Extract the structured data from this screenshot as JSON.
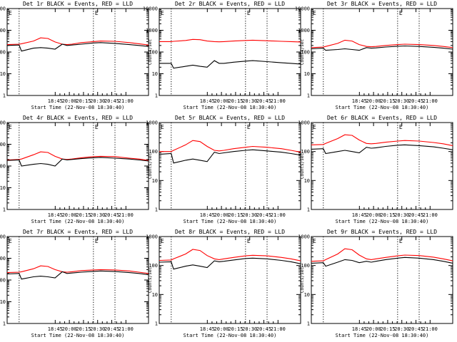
{
  "colors": {
    "events": "#000000",
    "lld": "#ff0000",
    "axes": "#000000",
    "background": "#ffffff"
  },
  "chart_data": [
    {
      "type": "line",
      "scale": "log",
      "ylim": [
        1,
        10000
      ],
      "xlim": [
        -0.25,
        2.7
      ],
      "title": "Det 1r BLACK = Events, RED = LLD",
      "xlabel": "Start Time (22-Nov-08 18:30:40)",
      "ylabel": "Counts/sec",
      "xticks": [
        "18:45",
        "20:00",
        "20:15",
        "20:30",
        "20:45",
        "21:00"
      ],
      "yticks": [
        "1",
        "10",
        "100",
        "1000",
        "10000"
      ],
      "markers": [
        0,
        1.55,
        2.0
      ],
      "marker_label": "E",
      "x": [
        -0.25,
        0.0,
        0.05,
        0.3,
        0.45,
        0.6,
        0.75,
        0.9,
        1.0,
        1.1,
        1.3,
        1.55,
        1.7,
        2.0,
        2.3,
        2.5,
        2.7
      ],
      "series": [
        {
          "role": "lld",
          "values": [
            220,
            230,
            240,
            320,
            450,
            420,
            290,
            230,
            220,
            230,
            270,
            300,
            320,
            310,
            270,
            240,
            210
          ]
        },
        {
          "role": "events",
          "values": [
            200,
            210,
            110,
            150,
            160,
            150,
            135,
            230,
            200,
            210,
            230,
            260,
            270,
            250,
            220,
            200,
            180
          ]
        }
      ]
    },
    {
      "type": "line",
      "scale": "log",
      "ylim": [
        1,
        10000
      ],
      "xlim": [
        -0.25,
        2.7
      ],
      "title": "Det 2r BLACK = Events, RED = LLD",
      "xlabel": "Start Time (22-Nov-08 18:30:40)",
      "ylabel": "Counts/sec",
      "xticks": [
        "18:45",
        "20:00",
        "20:15",
        "20:30",
        "20:45",
        "21:00"
      ],
      "yticks": [
        "1",
        "10",
        "100",
        "1000",
        "10000"
      ],
      "markers": [
        0,
        1.55,
        2.0
      ],
      "marker_label": "E",
      "x": [
        -0.25,
        0.0,
        0.05,
        0.3,
        0.45,
        0.6,
        0.75,
        0.9,
        1.0,
        1.1,
        1.3,
        1.55,
        1.7,
        2.0,
        2.3,
        2.5,
        2.7
      ],
      "series": [
        {
          "role": "lld",
          "values": [
            300,
            300,
            310,
            340,
            380,
            370,
            320,
            300,
            295,
            300,
            320,
            340,
            350,
            330,
            310,
            300,
            290
          ]
        },
        {
          "role": "events",
          "values": [
            30,
            30,
            18,
            22,
            25,
            22,
            20,
            40,
            30,
            30,
            34,
            38,
            40,
            36,
            32,
            30,
            28
          ]
        }
      ]
    },
    {
      "type": "line",
      "scale": "log",
      "ylim": [
        1,
        10000
      ],
      "xlim": [
        -0.25,
        2.7
      ],
      "title": "Det 3r BLACK = Events, RED = LLD",
      "xlabel": "Start Time (22-Nov-08 18:30:40)",
      "ylabel": "Counts/sec",
      "xticks": [
        "18:45",
        "20:00",
        "20:15",
        "20:30",
        "20:45",
        "21:00"
      ],
      "yticks": [
        "1",
        "10",
        "100",
        "1000",
        "10000"
      ],
      "markers": [
        0,
        1.55,
        2.0
      ],
      "marker_label": "E",
      "x": [
        -0.25,
        0.0,
        0.05,
        0.3,
        0.45,
        0.6,
        0.75,
        0.9,
        1.0,
        1.1,
        1.3,
        1.55,
        1.7,
        2.0,
        2.3,
        2.5,
        2.7
      ],
      "series": [
        {
          "role": "lld",
          "values": [
            160,
            170,
            180,
            250,
            350,
            320,
            220,
            180,
            175,
            180,
            200,
            220,
            230,
            220,
            200,
            180,
            160
          ]
        },
        {
          "role": "events",
          "values": [
            140,
            150,
            120,
            130,
            140,
            130,
            120,
            160,
            150,
            155,
            170,
            185,
            190,
            180,
            165,
            150,
            135
          ]
        }
      ]
    },
    {
      "type": "line",
      "scale": "log",
      "ylim": [
        1,
        10000
      ],
      "xlim": [
        -0.25,
        2.7
      ],
      "title": "Det 4r BLACK = Events, RED = LLD",
      "xlabel": "Start Time (22-Nov-08 18:30:40)",
      "ylabel": "Counts/sec",
      "xticks": [
        "18:45",
        "20:00",
        "20:15",
        "20:30",
        "20:45",
        "21:00"
      ],
      "yticks": [
        "1",
        "10",
        "100",
        "1000",
        "10000"
      ],
      "markers": [
        0,
        1.55,
        2.0
      ],
      "marker_label": "E",
      "x": [
        -0.25,
        0.0,
        0.05,
        0.3,
        0.45,
        0.6,
        0.75,
        0.9,
        1.0,
        1.1,
        1.3,
        1.55,
        1.7,
        2.0,
        2.3,
        2.5,
        2.7
      ],
      "series": [
        {
          "role": "lld",
          "values": [
            190,
            200,
            210,
            330,
            450,
            420,
            280,
            210,
            200,
            210,
            240,
            270,
            280,
            270,
            230,
            210,
            180
          ]
        },
        {
          "role": "events",
          "values": [
            180,
            190,
            100,
            120,
            130,
            120,
            100,
            210,
            190,
            200,
            220,
            240,
            250,
            230,
            210,
            190,
            170
          ]
        }
      ]
    },
    {
      "type": "line",
      "scale": "log",
      "ylim": [
        1,
        1000
      ],
      "xlim": [
        -0.25,
        2.7
      ],
      "title": "Det 5r BLACK = Events, RED = LLD",
      "xlabel": "Start Time (22-Nov-08 18:30:40)",
      "ylabel": "Counts/sec",
      "xticks": [
        "18:45",
        "20:00",
        "20:15",
        "20:30",
        "20:45",
        "21:00"
      ],
      "yticks": [
        "1",
        "10",
        "100",
        "1000"
      ],
      "markers": [
        0,
        1.55,
        2.0
      ],
      "marker_label": "E",
      "x": [
        -0.25,
        0.0,
        0.05,
        0.3,
        0.45,
        0.6,
        0.75,
        0.9,
        1.0,
        1.1,
        1.3,
        1.55,
        1.7,
        2.0,
        2.3,
        2.5,
        2.7
      ],
      "series": [
        {
          "role": "lld",
          "values": [
            100,
            100,
            110,
            170,
            240,
            220,
            150,
            110,
            105,
            110,
            125,
            140,
            150,
            140,
            125,
            110,
            95
          ]
        },
        {
          "role": "events",
          "values": [
            80,
            85,
            40,
            50,
            55,
            50,
            45,
            95,
            85,
            90,
            100,
            110,
            115,
            105,
            95,
            85,
            75
          ]
        }
      ]
    },
    {
      "type": "line",
      "scale": "log",
      "ylim": [
        1,
        1000
      ],
      "xlim": [
        -0.25,
        2.7
      ],
      "title": "Det 6r BLACK = Events, RED = LLD",
      "xlabel": "Start Time (22-Nov-08 18:30:40)",
      "ylabel": "Counts/sec",
      "xticks": [
        "18:45",
        "20:00",
        "20:15",
        "20:30",
        "20:45",
        "21:00"
      ],
      "yticks": [
        "1",
        "10",
        "100",
        "1000"
      ],
      "markers": [
        0,
        1.55,
        2.0
      ],
      "marker_label": "E",
      "x": [
        -0.25,
        0.0,
        0.05,
        0.3,
        0.45,
        0.6,
        0.75,
        0.9,
        1.0,
        1.1,
        1.3,
        1.55,
        1.7,
        2.0,
        2.3,
        2.5,
        2.7
      ],
      "series": [
        {
          "role": "lld",
          "values": [
            170,
            175,
            190,
            280,
            380,
            360,
            250,
            190,
            185,
            190,
            210,
            230,
            240,
            230,
            205,
            185,
            160
          ]
        },
        {
          "role": "events",
          "values": [
            120,
            125,
            85,
            100,
            110,
            100,
            90,
            140,
            130,
            135,
            150,
            165,
            170,
            160,
            145,
            130,
            115
          ]
        }
      ]
    },
    {
      "type": "line",
      "scale": "log",
      "ylim": [
        1,
        10000
      ],
      "xlim": [
        -0.25,
        2.7
      ],
      "title": "Det 7r BLACK = Events, RED = LLD",
      "xlabel": "Start Time (22-Nov-08 18:30:40)",
      "ylabel": "Counts/sec",
      "xticks": [
        "18:45",
        "20:00",
        "20:15",
        "20:30",
        "20:45",
        "21:00"
      ],
      "yticks": [
        "1",
        "10",
        "100",
        "1000",
        "10000"
      ],
      "markers": [
        0,
        1.55,
        2.0
      ],
      "marker_label": "E",
      "x": [
        -0.25,
        0.0,
        0.05,
        0.3,
        0.45,
        0.6,
        0.75,
        0.9,
        1.0,
        1.1,
        1.3,
        1.55,
        1.7,
        2.0,
        2.3,
        2.5,
        2.7
      ],
      "series": [
        {
          "role": "lld",
          "values": [
            220,
            230,
            240,
            330,
            450,
            420,
            300,
            240,
            230,
            240,
            270,
            290,
            300,
            290,
            260,
            230,
            200
          ]
        },
        {
          "role": "events",
          "values": [
            190,
            200,
            110,
            140,
            150,
            140,
            125,
            240,
            200,
            210,
            230,
            250,
            260,
            245,
            220,
            200,
            175
          ]
        }
      ]
    },
    {
      "type": "line",
      "scale": "log",
      "ylim": [
        1,
        1000
      ],
      "xlim": [
        -0.25,
        2.7
      ],
      "title": "Det 8r BLACK = Events, RED = LLD",
      "xlabel": "Start Time (22-Nov-08 18:30:40)",
      "ylabel": "Counts/sec",
      "xticks": [
        "18:45",
        "20:00",
        "20:15",
        "20:30",
        "20:45",
        "21:00"
      ],
      "yticks": [
        "1",
        "10",
        "100",
        "1000"
      ],
      "markers": [
        0,
        1.55,
        2.0
      ],
      "marker_label": "E",
      "x": [
        -0.25,
        0.0,
        0.05,
        0.3,
        0.45,
        0.6,
        0.75,
        0.9,
        1.0,
        1.1,
        1.3,
        1.55,
        1.7,
        2.0,
        2.3,
        2.5,
        2.7
      ],
      "series": [
        {
          "role": "lld",
          "values": [
            150,
            155,
            170,
            250,
            360,
            330,
            220,
            170,
            160,
            170,
            190,
            215,
            225,
            215,
            190,
            170,
            145
          ]
        },
        {
          "role": "events",
          "values": [
            130,
            135,
            75,
            95,
            105,
            95,
            85,
            145,
            135,
            140,
            155,
            175,
            180,
            170,
            150,
            135,
            115
          ]
        }
      ]
    },
    {
      "type": "line",
      "scale": "log",
      "ylim": [
        1,
        1000
      ],
      "xlim": [
        -0.25,
        2.7
      ],
      "title": "Det 9r BLACK = Events, RED = LLD",
      "xlabel": "Start Time (22-Nov-08 18:30:40)",
      "ylabel": "Counts/sec",
      "xticks": [
        "18:45",
        "20:00",
        "20:15",
        "20:30",
        "20:45",
        "21:00"
      ],
      "yticks": [
        "1",
        "10",
        "100",
        "1000"
      ],
      "markers": [
        0,
        1.55,
        2.0
      ],
      "marker_label": "E",
      "x": [
        -0.25,
        0.0,
        0.05,
        0.3,
        0.45,
        0.6,
        0.75,
        0.9,
        1.0,
        1.1,
        1.3,
        1.55,
        1.7,
        2.0,
        2.3,
        2.5,
        2.7
      ],
      "series": [
        {
          "role": "lld",
          "values": [
            140,
            145,
            160,
            250,
            380,
            350,
            230,
            170,
            160,
            170,
            190,
            215,
            230,
            220,
            195,
            170,
            145
          ]
        },
        {
          "role": "events",
          "values": [
            120,
            125,
            95,
            130,
            160,
            150,
            125,
            140,
            130,
            140,
            160,
            180,
            190,
            180,
            160,
            140,
            120
          ]
        }
      ]
    }
  ]
}
